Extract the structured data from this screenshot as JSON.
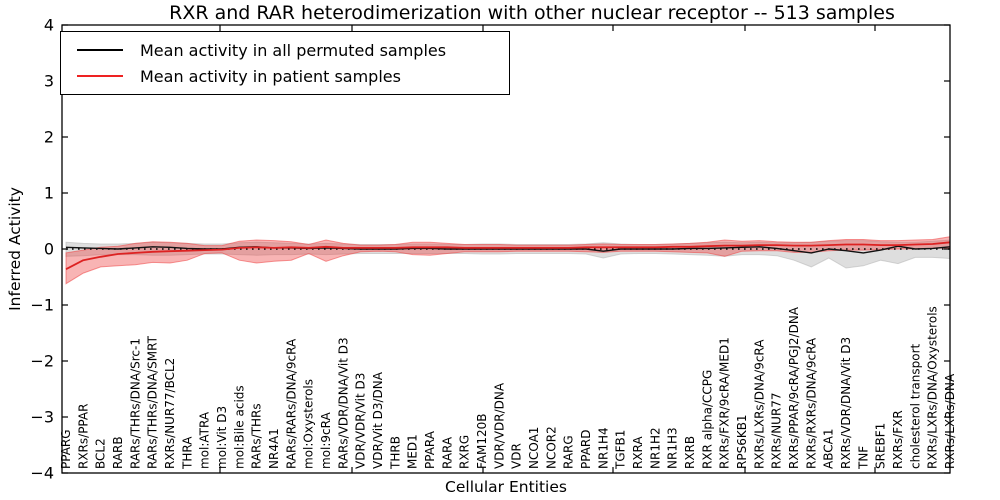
{
  "figure": {
    "title": "RXR and RAR heterodimerization with other nuclear receptor -- 513 samples",
    "xlabel": "Cellular Entities",
    "ylabel": "Inferred Activity",
    "legend": [
      {
        "label": "Mean activity in all permuted samples",
        "color": "#000000"
      },
      {
        "label": "Mean activity in patient samples",
        "color": "#ee2222"
      }
    ]
  },
  "chart_data": {
    "type": "line",
    "title": "RXR and RAR heterodimerization with other nuclear receptor -- 513 samples",
    "xlabel": "Cellular Entities",
    "ylabel": "Inferred Activity",
    "ylim": [
      -4,
      4
    ],
    "yticks": [
      4,
      3,
      2,
      1,
      0,
      -1,
      -2,
      -3,
      -4
    ],
    "grid": false,
    "legend_position": "upper left",
    "zero_reference_line": 0,
    "categories": [
      "PPARG",
      "RXRs/PPAR",
      "BCL2",
      "RARB",
      "RARs/THRs/DNA/Src-1",
      "RARs/THRs/DNA/SMRT",
      "RXRs/NUR77/BCL2",
      "THRA",
      "mol:ATRA",
      "mol:Vit D3",
      "mol:Bile acids",
      "RARs/THRs",
      "NR4A1",
      "RARs/RARs/DNA/9cRA",
      "mol:Oxysterols",
      "mol:9cRA",
      "RARs/VDR/DNA/Vit D3",
      "VDR/VDR/Vit D3",
      "VDR/Vit D3/DNA",
      "THRB",
      "MED1",
      "PPARA",
      "RARA",
      "RXRG",
      "FAM120B",
      "VDR/VDR/DNA",
      "VDR",
      "NCOA1",
      "NCOR2",
      "RARG",
      "PPARD",
      "NR1H4",
      "TGFB1",
      "RXRA",
      "NR1H2",
      "NR1H3",
      "RXRB",
      "RXR alpha/CCPG",
      "RXRs/FXR/9cRA/MED1",
      "RPS6KB1",
      "RXRs/LXRs/DNA/9cRA",
      "RXRs/NUR77",
      "RXRs/PPAR/9cRA/PGJ2/DNA",
      "RXRs/RXRs/DNA/9cRA",
      "ABCA1",
      "RXRs/VDR/DNA/Vit D3",
      "TNF",
      "SREBF1",
      "RXRs/FXR",
      "cholesterol transport",
      "RXRs/LXRs/DNA/Oxysterols",
      "RXRs/LXRs/DNA"
    ],
    "series": [
      {
        "id": "permuted-mean-line",
        "name": "Mean activity in all permuted samples",
        "color": "#111111",
        "width": 1.4,
        "values": [
          0.03,
          0.02,
          0.01,
          0.0,
          0.02,
          0.04,
          0.03,
          0.01,
          0.0,
          0.0,
          0.03,
          0.04,
          0.02,
          0.02,
          0.01,
          0.02,
          0.01,
          0.0,
          0.0,
          0.0,
          0.01,
          0.01,
          0.0,
          0.0,
          0.0,
          0.0,
          0.0,
          0.0,
          0.0,
          0.0,
          0.0,
          -0.04,
          0.0,
          0.0,
          0.0,
          0.0,
          0.01,
          0.01,
          0.02,
          0.03,
          0.04,
          0.01,
          -0.03,
          -0.07,
          0.0,
          -0.03,
          -0.07,
          -0.02,
          0.05,
          0.0,
          0.01,
          0.04
        ]
      },
      {
        "id": "patient-mean-line",
        "name": "Mean activity in patient samples",
        "color": "#dd2222",
        "width": 1.8,
        "values": [
          -0.36,
          -0.2,
          -0.14,
          -0.09,
          -0.07,
          -0.05,
          -0.04,
          -0.03,
          -0.02,
          -0.01,
          0.02,
          0.03,
          0.02,
          0.03,
          0.02,
          0.04,
          0.02,
          0.02,
          0.02,
          0.02,
          0.03,
          0.03,
          0.03,
          0.02,
          0.02,
          0.02,
          0.02,
          0.02,
          0.02,
          0.02,
          0.03,
          0.03,
          0.03,
          0.03,
          0.03,
          0.04,
          0.04,
          0.05,
          0.06,
          0.06,
          0.07,
          0.07,
          0.06,
          0.06,
          0.07,
          0.08,
          0.08,
          0.07,
          0.07,
          0.08,
          0.09,
          0.12
        ]
      }
    ],
    "bands": [
      {
        "id": "permuted-range-band",
        "name": "Permuted samples activity range",
        "color": "#b5b5b5",
        "fill_opacity": 0.45,
        "edge_opacity": 0.55,
        "low": [
          -0.13,
          -0.12,
          -0.1,
          -0.1,
          -0.1,
          -0.11,
          -0.11,
          -0.1,
          -0.09,
          -0.09,
          -0.1,
          -0.11,
          -0.1,
          -0.1,
          -0.09,
          -0.1,
          -0.09,
          -0.08,
          -0.08,
          -0.08,
          -0.08,
          -0.08,
          -0.08,
          -0.08,
          -0.09,
          -0.09,
          -0.08,
          -0.08,
          -0.08,
          -0.08,
          -0.09,
          -0.16,
          -0.09,
          -0.08,
          -0.08,
          -0.09,
          -0.1,
          -0.11,
          -0.13,
          -0.1,
          -0.1,
          -0.12,
          -0.2,
          -0.32,
          -0.16,
          -0.34,
          -0.3,
          -0.2,
          -0.26,
          -0.15,
          -0.15,
          -0.17
        ],
        "high": [
          0.12,
          0.1,
          0.09,
          0.09,
          0.1,
          0.12,
          0.11,
          0.1,
          0.09,
          0.09,
          0.11,
          0.12,
          0.11,
          0.1,
          0.09,
          0.1,
          0.09,
          0.08,
          0.08,
          0.08,
          0.09,
          0.09,
          0.08,
          0.08,
          0.09,
          0.09,
          0.08,
          0.08,
          0.08,
          0.08,
          0.09,
          0.11,
          0.09,
          0.08,
          0.08,
          0.09,
          0.1,
          0.11,
          0.12,
          0.11,
          0.12,
          0.11,
          0.11,
          0.12,
          0.14,
          0.15,
          0.15,
          0.13,
          0.12,
          0.12,
          0.14,
          0.16
        ]
      },
      {
        "id": "patient-range-band",
        "name": "Patient samples activity range",
        "color": "#ee4444",
        "fill_opacity": 0.4,
        "edge_opacity": 0.55,
        "low": [
          -0.62,
          -0.43,
          -0.32,
          -0.3,
          -0.28,
          -0.24,
          -0.25,
          -0.2,
          -0.08,
          -0.07,
          -0.2,
          -0.25,
          -0.22,
          -0.2,
          -0.08,
          -0.22,
          -0.12,
          -0.05,
          -0.04,
          -0.05,
          -0.1,
          -0.11,
          -0.08,
          -0.05,
          -0.05,
          -0.05,
          -0.04,
          -0.04,
          -0.04,
          -0.04,
          -0.05,
          -0.06,
          -0.04,
          -0.04,
          -0.04,
          -0.05,
          -0.06,
          -0.07,
          -0.13,
          -0.04,
          -0.03,
          -0.03,
          -0.06,
          -0.06,
          -0.03,
          -0.02,
          -0.02,
          -0.01,
          0.0,
          0.0,
          0.01,
          0.02
        ],
        "high": [
          -0.07,
          -0.02,
          0.03,
          0.05,
          0.1,
          0.13,
          0.12,
          0.1,
          0.06,
          0.06,
          0.14,
          0.16,
          0.15,
          0.13,
          0.08,
          0.16,
          0.1,
          0.07,
          0.07,
          0.08,
          0.12,
          0.12,
          0.1,
          0.08,
          0.08,
          0.08,
          0.07,
          0.07,
          0.07,
          0.07,
          0.08,
          0.09,
          0.08,
          0.08,
          0.08,
          0.09,
          0.1,
          0.12,
          0.16,
          0.14,
          0.15,
          0.13,
          0.12,
          0.12,
          0.15,
          0.17,
          0.17,
          0.15,
          0.15,
          0.16,
          0.17,
          0.22
        ]
      }
    ]
  }
}
